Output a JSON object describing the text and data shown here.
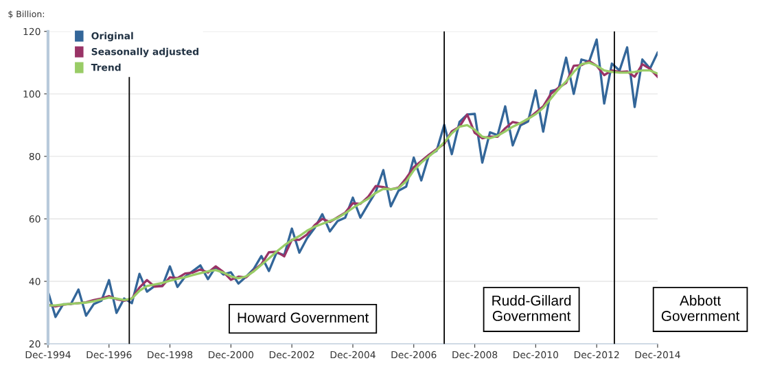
{
  "chart_data": {
    "type": "line",
    "ylabel": "$ Billion:",
    "x": [
      "1994-12",
      "1995-03",
      "1995-06",
      "1995-09",
      "1995-12",
      "1996-03",
      "1996-06",
      "1996-09",
      "1996-12",
      "1997-03",
      "1997-06",
      "1997-09",
      "1997-12",
      "1998-03",
      "1998-06",
      "1998-09",
      "1998-12",
      "1999-03",
      "1999-06",
      "1999-09",
      "1999-12",
      "2000-03",
      "2000-06",
      "2000-09",
      "2000-12",
      "2001-03",
      "2001-06",
      "2001-09",
      "2001-12",
      "2002-03",
      "2002-06",
      "2002-09",
      "2002-12",
      "2003-03",
      "2003-06",
      "2003-09",
      "2003-12",
      "2004-03",
      "2004-06",
      "2004-09",
      "2004-12",
      "2005-03",
      "2005-06",
      "2005-09",
      "2005-12",
      "2006-03",
      "2006-06",
      "2006-09",
      "2006-12",
      "2007-03",
      "2007-06",
      "2007-09",
      "2007-12",
      "2008-03",
      "2008-06",
      "2008-09",
      "2008-12",
      "2009-03",
      "2009-06",
      "2009-09",
      "2009-12",
      "2010-03",
      "2010-06",
      "2010-09",
      "2010-12",
      "2011-03",
      "2011-06",
      "2011-09",
      "2011-12",
      "2012-03",
      "2012-06",
      "2012-09",
      "2012-12",
      "2013-03",
      "2013-06",
      "2013-09",
      "2013-12",
      "2014-03",
      "2014-06",
      "2014-09",
      "2014-12"
    ],
    "series": [
      {
        "name": "Original",
        "color": "#336699",
        "values": [
          36.7,
          28.6,
          32.7,
          32.7,
          37.4,
          29.0,
          32.7,
          33.8,
          40.4,
          29.9,
          34.5,
          33.0,
          42.4,
          36.7,
          38.5,
          38.5,
          44.8,
          38.2,
          41.5,
          43.3,
          45.1,
          40.7,
          44.6,
          42.2,
          42.9,
          39.3,
          41.5,
          44.0,
          48.1,
          43.3,
          49.2,
          48.4,
          56.9,
          49.2,
          53.8,
          57.1,
          61.5,
          56.0,
          59.3,
          60.4,
          66.8,
          60.4,
          64.6,
          68.6,
          75.6,
          64.0,
          69.0,
          70.3,
          79.6,
          72.3,
          80.4,
          81.8,
          90.1,
          80.7,
          91.0,
          93.4,
          93.6,
          78.0,
          87.7,
          86.8,
          96.0,
          83.5,
          89.9,
          91.2,
          101.1,
          87.9,
          100.9,
          101.5,
          111.6,
          100.0,
          111.0,
          110.3,
          117.4,
          96.9,
          109.7,
          107.5,
          114.9,
          95.8,
          111.0,
          108.1,
          113.2
        ]
      },
      {
        "name": "Seasonally adjusted",
        "color": "#993366",
        "values": [
          32.5,
          32.0,
          32.5,
          32.8,
          33.0,
          33.3,
          34.0,
          34.5,
          35.3,
          34.3,
          33.8,
          34.5,
          38.0,
          40.4,
          38.3,
          38.5,
          41.3,
          41.0,
          42.5,
          42.8,
          43.8,
          42.8,
          44.8,
          43.0,
          40.5,
          41.5,
          41.3,
          43.5,
          45.5,
          49.3,
          49.5,
          48.0,
          53.3,
          53.3,
          55.0,
          58.0,
          60.0,
          59.0,
          60.5,
          62.0,
          65.0,
          64.8,
          67.0,
          70.5,
          70.2,
          69.4,
          70.0,
          73.0,
          76.5,
          78.5,
          80.5,
          82.3,
          84.0,
          88.0,
          89.5,
          93.4,
          87.5,
          85.8,
          86.3,
          86.3,
          89.0,
          91.0,
          90.5,
          92.0,
          94.0,
          96.0,
          100.0,
          102.0,
          103.5,
          109.0,
          109.2,
          110.5,
          109.0,
          106.0,
          107.5,
          107.0,
          107.2,
          105.5,
          109.5,
          108.0,
          105.5
        ]
      },
      {
        "name": "Trend",
        "color": "#99cc66",
        "values": [
          32.3,
          32.3,
          32.6,
          32.8,
          33.0,
          33.2,
          33.6,
          34.2,
          34.8,
          34.5,
          34.0,
          34.5,
          37.0,
          38.5,
          39.0,
          39.5,
          40.2,
          40.8,
          41.3,
          42.0,
          42.6,
          43.2,
          43.6,
          42.8,
          41.6,
          41.0,
          41.6,
          43.2,
          45.3,
          47.3,
          49.5,
          51.5,
          53.2,
          54.5,
          56.2,
          57.5,
          58.4,
          59.3,
          60.3,
          61.8,
          63.5,
          65.0,
          66.4,
          68.3,
          69.6,
          69.5,
          69.8,
          72.0,
          75.5,
          78.0,
          80.0,
          82.0,
          84.5,
          87.4,
          89.5,
          90.0,
          88.5,
          86.3,
          85.8,
          86.6,
          88.0,
          89.5,
          90.7,
          92.0,
          93.5,
          95.5,
          98.5,
          101.5,
          104.0,
          107.0,
          109.5,
          110.0,
          109.0,
          107.5,
          107.0,
          106.8,
          106.8,
          107.0,
          107.5,
          107.5,
          106.5
        ]
      }
    ],
    "xlim": [
      "1994-12",
      "2014-12"
    ],
    "xticks": [
      {
        "value": "1994-12",
        "label": "Dec-1994"
      },
      {
        "value": "1996-12",
        "label": "Dec-1996"
      },
      {
        "value": "1998-12",
        "label": "Dec-1998"
      },
      {
        "value": "2000-12",
        "label": "Dec-2000"
      },
      {
        "value": "2002-12",
        "label": "Dec-2002"
      },
      {
        "value": "2004-12",
        "label": "Dec-2004"
      },
      {
        "value": "2006-12",
        "label": "Dec-2006"
      },
      {
        "value": "2008-12",
        "label": "Dec-2008"
      },
      {
        "value": "2010-12",
        "label": "Dec-2010"
      },
      {
        "value": "2012-12",
        "label": "Dec-2012"
      },
      {
        "value": "2014-12",
        "label": "Dec-2014"
      }
    ],
    "ylim": [
      20,
      120
    ],
    "yticks": [
      20,
      40,
      60,
      80,
      100,
      120
    ],
    "grid": "y",
    "legend": "top left",
    "marker": "none",
    "line_style": "solid",
    "annotations": [
      "Howard Government",
      "Rudd-Gillard\nGovernment",
      "Abbott\nGovernment"
    ],
    "ref_lines": [
      {
        "axis": "x",
        "value": "1997-08",
        "color": "#000000"
      },
      {
        "axis": "x",
        "value": "2007-12",
        "color": "#000000"
      },
      {
        "axis": "x",
        "value": "2013-07",
        "color": "#000000"
      }
    ]
  }
}
